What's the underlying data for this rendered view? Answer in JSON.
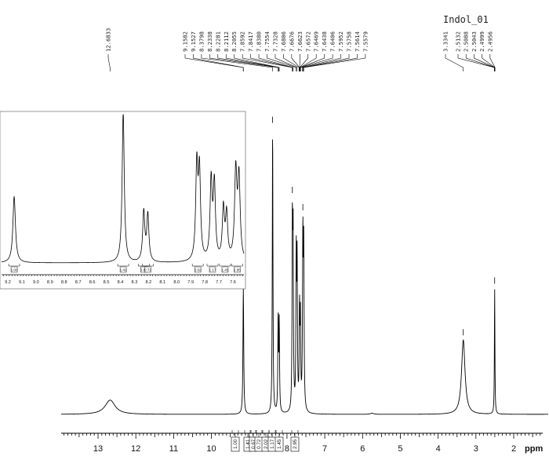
{
  "chart_data": {
    "type": "line",
    "title": "Indol_01",
    "xlabel": "ppm",
    "x_axis": {
      "range": [
        14.5,
        0.3
      ],
      "reversed": true,
      "ticks": [
        13,
        12,
        11,
        10,
        9,
        8,
        7,
        6,
        5,
        4,
        3,
        2
      ]
    },
    "peak_labels": [
      {
        "ppm_label": "12.6833"
      },
      {
        "ppm_label": "9.1582"
      },
      {
        "ppm_label": "9.1527"
      },
      {
        "ppm_label": "8.3798"
      },
      {
        "ppm_label": "8.2338"
      },
      {
        "ppm_label": "8.2281"
      },
      {
        "ppm_label": "8.2112"
      },
      {
        "ppm_label": "8.2055"
      },
      {
        "ppm_label": "7.8592"
      },
      {
        "ppm_label": "7.8417"
      },
      {
        "ppm_label": "7.8380"
      },
      {
        "ppm_label": "7.7554"
      },
      {
        "ppm_label": "7.7328"
      },
      {
        "ppm_label": "7.6806"
      },
      {
        "ppm_label": "7.6676"
      },
      {
        "ppm_label": "7.6623"
      },
      {
        "ppm_label": "7.6572"
      },
      {
        "ppm_label": "7.6469"
      },
      {
        "ppm_label": "7.6438"
      },
      {
        "ppm_label": "7.6406"
      },
      {
        "ppm_label": "7.5952"
      },
      {
        "ppm_label": "7.5758"
      },
      {
        "ppm_label": "7.5614"
      },
      {
        "ppm_label": "7.5579"
      },
      {
        "ppm_label": "3.3341"
      },
      {
        "ppm_label": "2.5132"
      },
      {
        "ppm_label": "2.5088"
      },
      {
        "ppm_label": "2.5043"
      },
      {
        "ppm_label": "2.4999"
      },
      {
        "ppm_label": "2.4956"
      }
    ],
    "peaks": [
      {
        "ppm": 12.68,
        "height": 0.05,
        "width": 0.16
      },
      {
        "ppm": 9.155,
        "height": 0.44,
        "width": 0.012
      },
      {
        "ppm": 8.38,
        "height": 1.0,
        "width": 0.01
      },
      {
        "ppm": 8.234,
        "height": 0.33,
        "width": 0.01
      },
      {
        "ppm": 8.205,
        "height": 0.31,
        "width": 0.01
      },
      {
        "ppm": 7.857,
        "height": 0.62,
        "width": 0.01
      },
      {
        "ppm": 7.838,
        "height": 0.58,
        "width": 0.01
      },
      {
        "ppm": 7.755,
        "height": 0.52,
        "width": 0.01
      },
      {
        "ppm": 7.732,
        "height": 0.5,
        "width": 0.01
      },
      {
        "ppm": 7.668,
        "height": 0.34,
        "width": 0.01
      },
      {
        "ppm": 7.645,
        "height": 0.3,
        "width": 0.01
      },
      {
        "ppm": 7.58,
        "height": 0.58,
        "width": 0.011
      },
      {
        "ppm": 7.557,
        "height": 0.54,
        "width": 0.011
      },
      {
        "ppm": 3.334,
        "height": 0.26,
        "width": 0.055
      },
      {
        "ppm": 2.504,
        "height": 0.44,
        "width": 0.008
      },
      {
        "ppm": 0.9,
        "height": 0.006,
        "width": 0.05
      },
      {
        "ppm": 5.75,
        "height": 0.004,
        "width": 0.05
      }
    ],
    "integrals": [
      {
        "ppm": 9.155,
        "value": "1.00"
      },
      {
        "ppm": 8.38,
        "value": "1.41"
      },
      {
        "ppm": 8.25,
        "value": "0.67"
      },
      {
        "ppm": 8.21,
        "value": "0.72"
      },
      {
        "ppm": 7.85,
        "value": "2.02"
      },
      {
        "ppm": 7.74,
        "value": "1.17"
      },
      {
        "ppm": 7.66,
        "value": "1.45"
      },
      {
        "ppm": 7.57,
        "value": "2.95"
      }
    ],
    "inset": {
      "range": [
        9.25,
        7.52
      ],
      "ticks": [
        "9.2",
        "9.1",
        "9.0",
        "8.9",
        "8.8",
        "8.7",
        "8.6",
        "8.5",
        "8.4",
        "8.3",
        "8.2",
        "8.1",
        "8.0",
        "7.9",
        "7.8",
        "7.7",
        "7.6"
      ],
      "integrals": [
        {
          "ppm": 9.155,
          "value": "1.00"
        },
        {
          "ppm": 8.38,
          "value": "1.41"
        },
        {
          "ppm": 8.234,
          "value": "0.67"
        },
        {
          "ppm": 8.205,
          "value": "0.72"
        },
        {
          "ppm": 7.85,
          "value": "2.02"
        },
        {
          "ppm": 7.745,
          "value": "1.17"
        },
        {
          "ppm": 7.656,
          "value": "1.45"
        },
        {
          "ppm": 7.57,
          "value": "2.95"
        }
      ]
    }
  }
}
